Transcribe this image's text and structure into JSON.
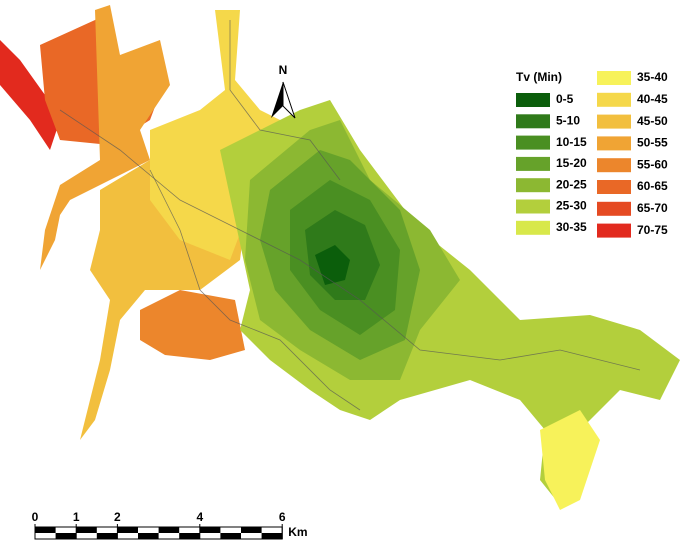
{
  "legend": {
    "title": "Tv (Min)",
    "items": [
      {
        "label": "0-5",
        "color": "#0b5e0b"
      },
      {
        "label": "5-10",
        "color": "#2f7a1a"
      },
      {
        "label": "10-15",
        "color": "#4a8f22"
      },
      {
        "label": "15-20",
        "color": "#66a22a"
      },
      {
        "label": "20-25",
        "color": "#8cb832"
      },
      {
        "label": "25-30",
        "color": "#b3cf3c"
      },
      {
        "label": "30-35",
        "color": "#d8e84a"
      },
      {
        "label": "35-40",
        "color": "#f7f25a"
      },
      {
        "label": "40-45",
        "color": "#f5d84a"
      },
      {
        "label": "45-50",
        "color": "#f2bf3e"
      },
      {
        "label": "50-55",
        "color": "#f0a434"
      },
      {
        "label": "55-60",
        "color": "#ec862c"
      },
      {
        "label": "60-65",
        "color": "#e96826"
      },
      {
        "label": "65-70",
        "color": "#e54a22"
      },
      {
        "label": "70-75",
        "color": "#e22a1e"
      }
    ]
  },
  "north": {
    "label": "N"
  },
  "scale": {
    "ticks": [
      0,
      1,
      2,
      4,
      6
    ],
    "unit": "Km"
  }
}
